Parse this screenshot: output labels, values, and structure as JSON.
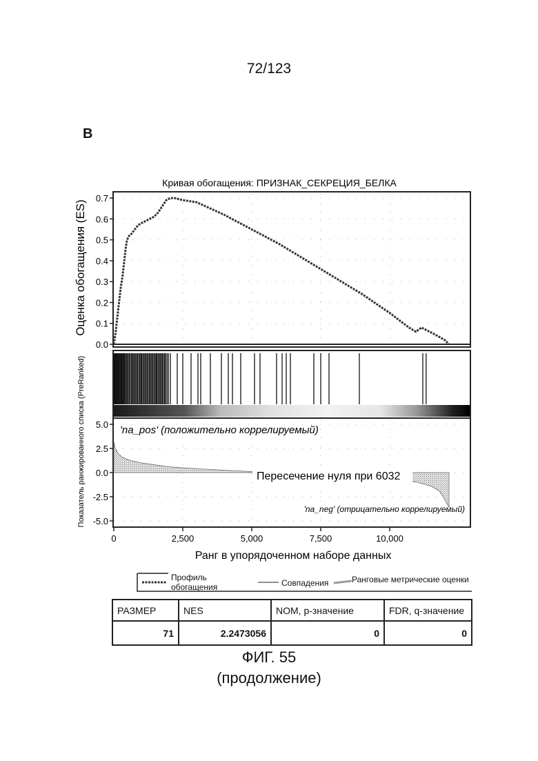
{
  "page": {
    "number": "72/123",
    "panel_label": "B",
    "caption_line1": "ФИГ. 55",
    "caption_line2": "(продолжение)"
  },
  "chart_data": [
    {
      "type": "line",
      "title": "Кривая обогащения: ПРИЗНАК_СЕКРЕЦИЯ_БЕЛКА",
      "ylabel": "Оценка обогащения (ES)",
      "ylim": [
        0,
        0.72
      ],
      "xlim": [
        0,
        12900
      ],
      "yticks": [
        "0.0",
        "0.1",
        "0.2",
        "0.3",
        "0.4",
        "0.5",
        "0.6",
        "0.7"
      ],
      "series": [
        {
          "name": "Профиль обогащения",
          "x": [
            0,
            60,
            120,
            180,
            250,
            320,
            380,
            430,
            480,
            560,
            650,
            760,
            880,
            1000,
            1150,
            1300,
            1450,
            1600,
            1750,
            1900,
            2050,
            2200,
            2350,
            2500,
            3000,
            4000,
            5000,
            6000,
            7000,
            8000,
            9000,
            10000,
            10700,
            10950,
            11050,
            11150,
            11300,
            11600,
            12000,
            12150
          ],
          "y": [
            0,
            0.05,
            0.12,
            0.19,
            0.27,
            0.33,
            0.4,
            0.46,
            0.5,
            0.52,
            0.53,
            0.55,
            0.57,
            0.58,
            0.59,
            0.6,
            0.61,
            0.63,
            0.66,
            0.69,
            0.7,
            0.7,
            0.695,
            0.69,
            0.68,
            0.62,
            0.55,
            0.48,
            0.4,
            0.32,
            0.24,
            0.15,
            0.08,
            0.06,
            0.07,
            0.08,
            0.07,
            0.05,
            0.02,
            0
          ]
        }
      ],
      "grid": true
    },
    {
      "type": "area",
      "ylabel": "Показатель ранжированного списка (PreRanked)",
      "xlabel": "Ранг в упорядоченном наборе данных",
      "ylim": [
        -5.5,
        5.5
      ],
      "xlim": [
        0,
        12900
      ],
      "yticks": [
        "5.0",
        "2.5",
        "0.0",
        "-2.5",
        "-5.0"
      ],
      "xticks": [
        "0",
        "2,500",
        "5,000",
        "7,500",
        "10,000"
      ],
      "xtick_values": [
        0,
        2500,
        5000,
        7500,
        10000
      ],
      "series": [
        {
          "name": "Ранговые метрические оценки",
          "x": [
            0,
            50,
            150,
            300,
            600,
            1000,
            1500,
            2000,
            3000,
            4000,
            5000,
            6032,
            7000,
            8000,
            9000,
            10000,
            10500,
            11000,
            11500,
            11800,
            12000,
            12150
          ],
          "y": [
            3.2,
            2.5,
            2.0,
            1.6,
            1.25,
            1.0,
            0.8,
            0.6,
            0.4,
            0.25,
            0.1,
            0,
            -0.1,
            -0.25,
            -0.4,
            -0.6,
            -0.8,
            -1.0,
            -1.4,
            -1.9,
            -2.8,
            -3.6
          ]
        }
      ],
      "hits": [
        15,
        30,
        45,
        70,
        95,
        120,
        150,
        170,
        200,
        230,
        260,
        290,
        320,
        350,
        380,
        410,
        450,
        480,
        520,
        560,
        600,
        640,
        680,
        700,
        740,
        780,
        820,
        860,
        900,
        940,
        980,
        1010,
        1050,
        1090,
        1130,
        1170,
        1210,
        1250,
        1290,
        1330,
        1370,
        1410,
        1450,
        1490,
        1530,
        1560,
        1600,
        1640,
        1680,
        1720,
        1760,
        1800,
        1840,
        1880,
        1930,
        1980,
        2050,
        2300,
        2500,
        2800,
        3050,
        3150,
        3500,
        3900,
        4150,
        4300,
        4600,
        5100,
        5300,
        5900,
        6100,
        6250,
        6400,
        7250,
        7500,
        7800,
        8900,
        11200,
        11320
      ],
      "annotations": {
        "pos": "'na_pos' (положительно коррелируемый)",
        "zero": "Пересечение нуля при 6032",
        "neg": "'na_neg' (отрицательно коррелируемый)"
      },
      "grid": true
    }
  ],
  "legend": {
    "profile": "Профиль обогащения",
    "hits": "Совпадения",
    "metric": "Ранговые метрические оценки"
  },
  "table": {
    "headers": [
      "РАЗМЕР",
      "NES",
      "NOM, p-значение",
      "FDR, q-значение"
    ],
    "values": [
      "71",
      "2.2473056",
      "0",
      "0"
    ]
  }
}
